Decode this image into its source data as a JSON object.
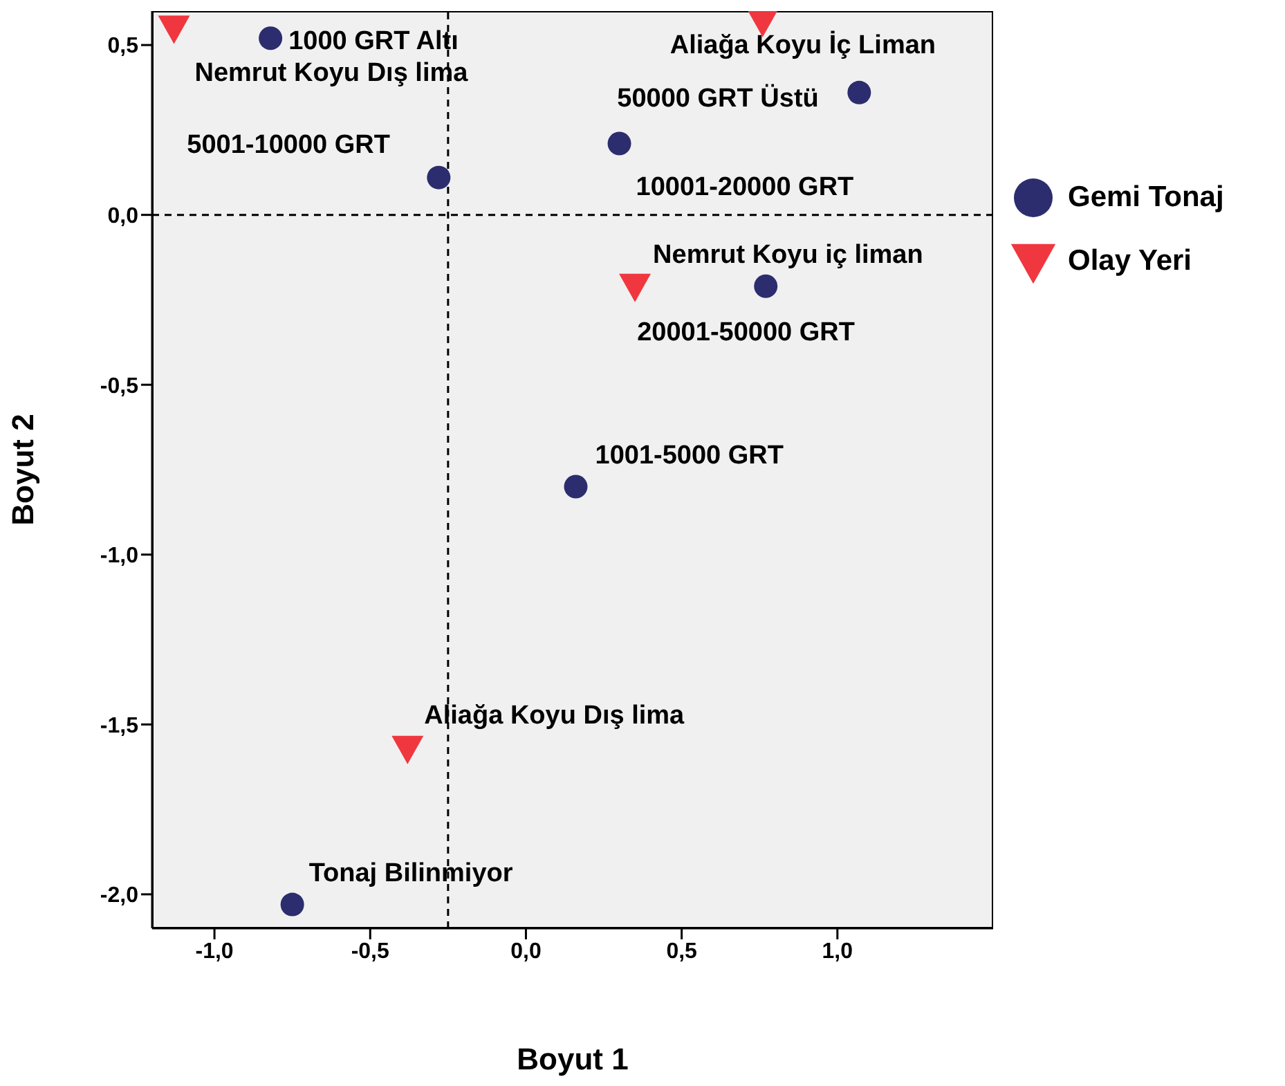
{
  "chart_data": {
    "type": "scatter",
    "xlabel": "Boyut 1",
    "ylabel": "Boyut 2",
    "xlim": [
      -1.2,
      1.5
    ],
    "xticks": [
      {
        "value": -1,
        "label": "-1,0"
      },
      {
        "value": -0.5,
        "label": "-0,5"
      },
      {
        "value": 0,
        "label": "0,0"
      },
      {
        "value": 0.5,
        "label": "0,5"
      },
      {
        "value": 1,
        "label": "1,0"
      }
    ],
    "ylim": [
      -2.1,
      0.6
    ],
    "yticks": [
      {
        "value": -2,
        "label": "-2,0"
      },
      {
        "value": -1.5,
        "label": "-1,5"
      },
      {
        "value": -1,
        "label": "-1,0"
      },
      {
        "value": -0.5,
        "label": "-0,5"
      },
      {
        "value": 0,
        "label": "0,0"
      },
      {
        "value": 0.5,
        "label": "0,5"
      }
    ],
    "legend": "right",
    "series": [
      {
        "name": "Gemi Tonaj",
        "color": "#2b2d6e",
        "marker": "circle",
        "x": [
          -0.82,
          -0.28,
          1.07,
          0.3,
          0.77,
          0.16,
          -0.75
        ],
        "values": [
          0.52,
          0.11,
          0.36,
          0.21,
          -0.21,
          -0.8,
          -2.03
        ]
      },
      {
        "name": "Olay Yeri",
        "color": "#f0373f",
        "marker": "triangle",
        "x": [
          -1.13,
          0.76,
          0.35,
          -0.38
        ],
        "values": [
          0.55,
          0.57,
          -0.21,
          -1.57
        ]
      }
    ],
    "ref_lines": [
      {
        "axis": "x",
        "value": -0.25,
        "line_style": "dashed"
      },
      {
        "axis": "y",
        "value": 0,
        "line_style": "dashed"
      }
    ],
    "annotations": [
      {
        "text": "1000 GRT Altı",
        "x": -0.82,
        "y": 0.52
      },
      {
        "text": "5001-10000 GRT",
        "x": -0.28,
        "y": 0.11
      },
      {
        "text": "50000 GRT Üstü",
        "x": 1.07,
        "y": 0.36
      },
      {
        "text": "10001-20000 GRT",
        "x": 0.3,
        "y": 0.21
      },
      {
        "text": "20001-50000 GRT",
        "x": 0.77,
        "y": -0.21
      },
      {
        "text": "1001-5000 GRT",
        "x": 0.16,
        "y": -0.8
      },
      {
        "text": "Tonaj Bilinmiyor",
        "x": -0.75,
        "y": -2.03
      },
      {
        "text": "Nemrut Koyu Dış lima",
        "x": -1.13,
        "y": 0.55
      },
      {
        "text": "Aliağa Koyu İç Liman",
        "x": 0.76,
        "y": 0.57
      },
      {
        "text": "Nemrut Koyu iç liman",
        "x": 0.35,
        "y": -0.21
      },
      {
        "text": "Aliağa Koyu Dış lima",
        "x": -0.38,
        "y": -1.57
      }
    ]
  }
}
